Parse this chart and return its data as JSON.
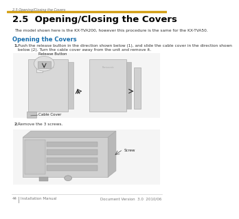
{
  "background_color": "#ffffff",
  "top_bar_color": "#d4a017",
  "top_section_text": "2.5 Opening/Closing the Covers",
  "top_section_text_color": "#666666",
  "title": "2.5  Opening/Closing the Covers",
  "title_fontsize": 9.5,
  "title_color": "#000000",
  "subtitle": "The model shown here is the KX-TVA200, however this procedure is the same for the KX-TVA50.",
  "subtitle_fontsize": 4.2,
  "subtitle_color": "#333333",
  "section_heading": "Opening the Covers",
  "section_heading_color": "#1a6fad",
  "section_heading_fontsize": 6.0,
  "step1_label": "1.",
  "step1_text": "Push the release button in the direction shown below (1), and slide the cable cover in the direction shown\nbelow (2). Turn the cable cover away from the unit and remove it.",
  "step1_fontsize": 4.2,
  "step1_color": "#333333",
  "diagram1_bg": "#f5f5f5",
  "diagram1_label_release": "Release Button",
  "diagram1_label_cable": "Cable Cover",
  "diagram1_label_fontsize": 4.0,
  "step2_label": "2.",
  "step2_text": "Remove the 3 screws.",
  "step2_fontsize": 4.2,
  "step2_color": "#333333",
  "diagram2_bg": "#f5f5f5",
  "diagram2_label_screw": "Screw",
  "diagram2_label_fontsize": 4.0,
  "footer_left_num": "44",
  "footer_left_text": "Installation Manual",
  "footer_right": "Document Version  3.0  2010/06",
  "footer_color": "#777777",
  "footer_fontsize": 4.0
}
